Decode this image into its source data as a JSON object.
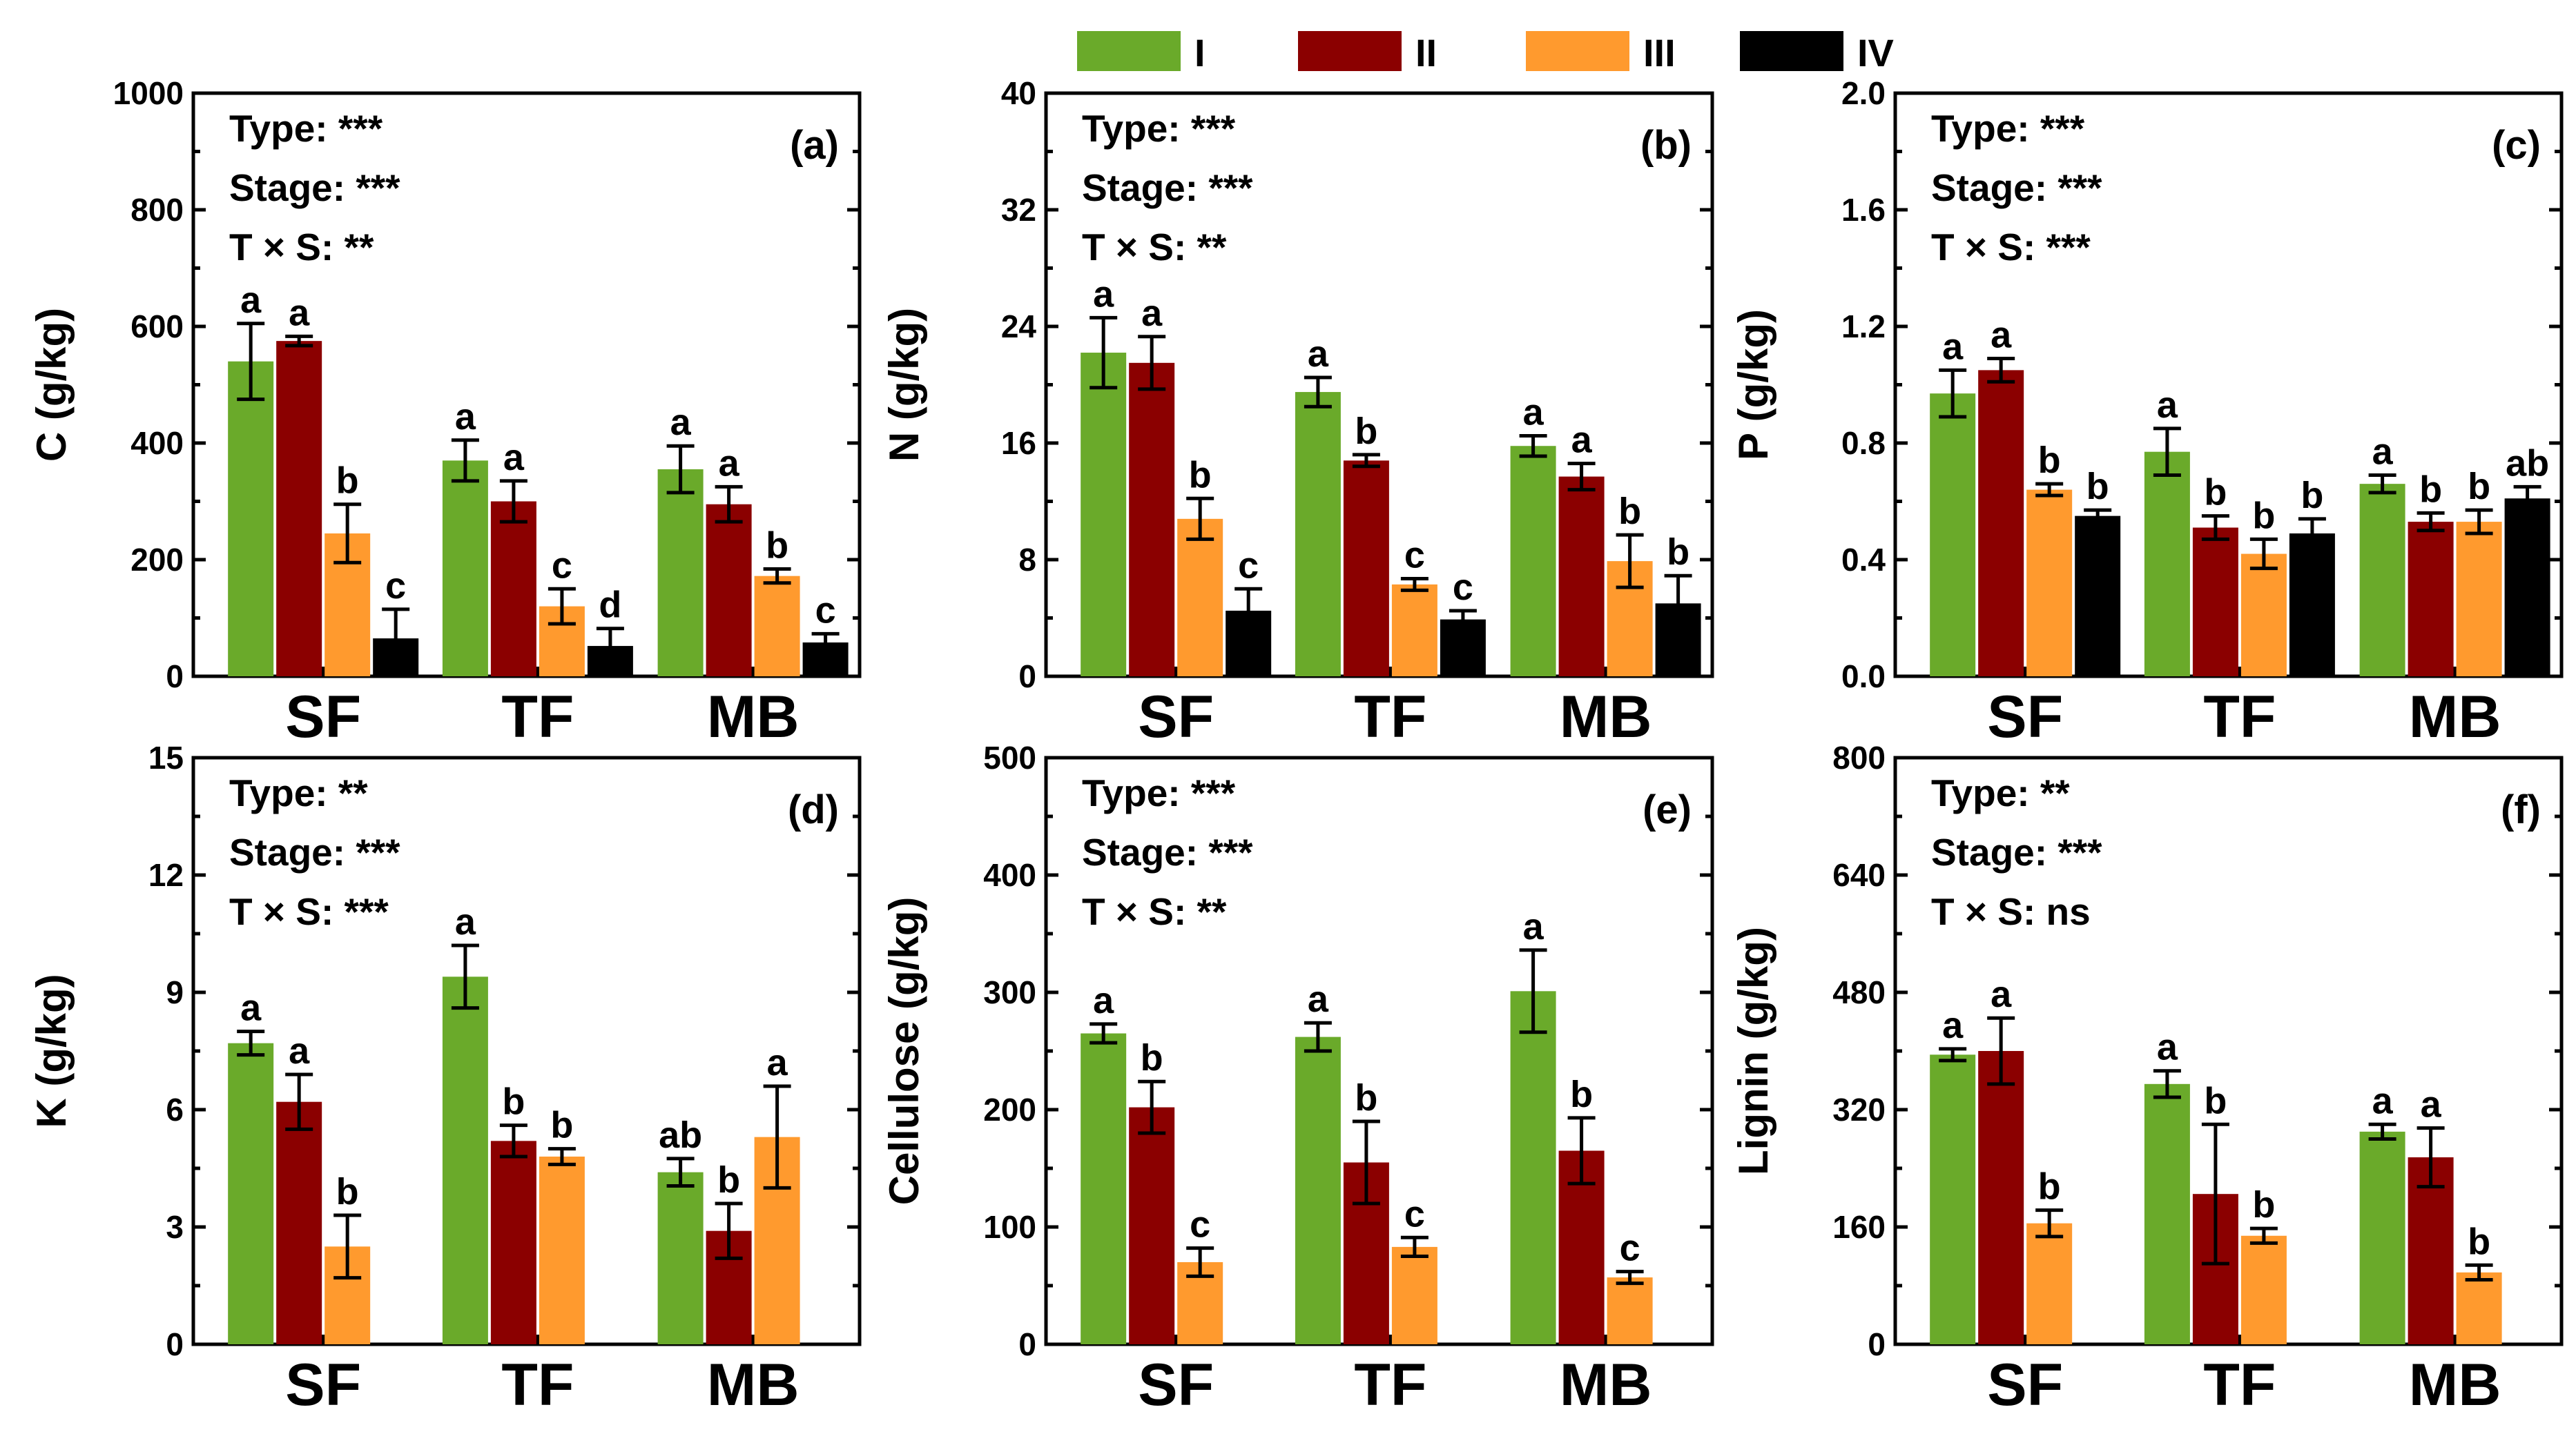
{
  "legend": {
    "entries": [
      {
        "name": "I",
        "color": "#6aaa2a"
      },
      {
        "name": "II",
        "color": "#8b0000"
      },
      {
        "name": "III",
        "color": "#ff9a2e"
      },
      {
        "name": "IV",
        "color": "#000000"
      }
    ]
  },
  "chart_data": [
    {
      "type": "bar",
      "panel": "(a)",
      "ylabel": "C (g/kg)",
      "ylim": [
        0,
        1000
      ],
      "yticks": [
        "0",
        "200",
        "400",
        "600",
        "800",
        "1000"
      ],
      "categories": [
        "SF",
        "TF",
        "MB"
      ],
      "stats": [
        "Type: ***",
        "Stage: ***",
        "T × S: **"
      ],
      "series": [
        {
          "name": "I",
          "values": [
            540,
            370,
            355
          ],
          "errors": [
            65,
            35,
            40
          ],
          "letters": [
            "a",
            "a",
            "a"
          ]
        },
        {
          "name": "II",
          "values": [
            575,
            300,
            295
          ],
          "errors": [
            8,
            35,
            30
          ],
          "letters": [
            "a",
            "a",
            "a"
          ]
        },
        {
          "name": "III",
          "values": [
            245,
            120,
            172
          ],
          "errors": [
            50,
            30,
            12
          ],
          "letters": [
            "b",
            "c",
            "b"
          ]
        },
        {
          "name": "IV",
          "values": [
            65,
            52,
            58
          ],
          "errors": [
            50,
            30,
            15
          ],
          "letters": [
            "c",
            "d",
            "c"
          ]
        }
      ]
    },
    {
      "type": "bar",
      "panel": "(b)",
      "ylabel": "N (g/kg)",
      "ylim": [
        0,
        40
      ],
      "yticks": [
        "0",
        "8",
        "16",
        "24",
        "32",
        "40"
      ],
      "categories": [
        "SF",
        "TF",
        "MB"
      ],
      "stats": [
        "Type: ***",
        "Stage: ***",
        "T × S: **"
      ],
      "series": [
        {
          "name": "I",
          "values": [
            22.2,
            19.5,
            15.8
          ],
          "errors": [
            2.4,
            1.0,
            0.7
          ],
          "letters": [
            "a",
            "a",
            "a"
          ]
        },
        {
          "name": "II",
          "values": [
            21.5,
            14.8,
            13.7
          ],
          "errors": [
            1.8,
            0.4,
            0.9
          ],
          "letters": [
            "a",
            "b",
            "a"
          ]
        },
        {
          "name": "III",
          "values": [
            10.8,
            6.3,
            7.9
          ],
          "errors": [
            1.4,
            0.4,
            1.8
          ],
          "letters": [
            "b",
            "c",
            "b"
          ]
        },
        {
          "name": "IV",
          "values": [
            4.5,
            3.9,
            5.0
          ],
          "errors": [
            1.5,
            0.6,
            1.9
          ],
          "letters": [
            "c",
            "c",
            "b"
          ]
        }
      ]
    },
    {
      "type": "bar",
      "panel": "(c)",
      "ylabel": "P (g/kg)",
      "ylim": [
        0,
        2.0
      ],
      "yticks": [
        "0.0",
        "0.4",
        "0.8",
        "1.2",
        "1.6",
        "2.0"
      ],
      "categories": [
        "SF",
        "TF",
        "MB"
      ],
      "stats": [
        "Type: ***",
        "Stage: ***",
        "T × S: ***"
      ],
      "series": [
        {
          "name": "I",
          "values": [
            0.97,
            0.77,
            0.66
          ],
          "errors": [
            0.08,
            0.08,
            0.03
          ],
          "letters": [
            "a",
            "a",
            "a"
          ]
        },
        {
          "name": "II",
          "values": [
            1.05,
            0.51,
            0.53
          ],
          "errors": [
            0.04,
            0.04,
            0.03
          ],
          "letters": [
            "a",
            "b",
            "b"
          ]
        },
        {
          "name": "III",
          "values": [
            0.64,
            0.42,
            0.53
          ],
          "errors": [
            0.02,
            0.05,
            0.04
          ],
          "letters": [
            "b",
            "b",
            "b"
          ]
        },
        {
          "name": "IV",
          "values": [
            0.55,
            0.49,
            0.61
          ],
          "errors": [
            0.02,
            0.05,
            0.04
          ],
          "letters": [
            "b",
            "b",
            "ab"
          ]
        }
      ]
    },
    {
      "type": "bar",
      "panel": "(d)",
      "ylabel": "K (g/kg)",
      "ylim": [
        0,
        15
      ],
      "yticks": [
        "0",
        "3",
        "6",
        "9",
        "12",
        "15"
      ],
      "categories": [
        "SF",
        "TF",
        "MB"
      ],
      "stats": [
        "Type: **",
        "Stage: ***",
        "T × S: ***"
      ],
      "series": [
        {
          "name": "I",
          "values": [
            7.7,
            9.4,
            4.4
          ],
          "errors": [
            0.3,
            0.8,
            0.35
          ],
          "letters": [
            "a",
            "a",
            "ab"
          ]
        },
        {
          "name": "II",
          "values": [
            6.2,
            5.2,
            2.9
          ],
          "errors": [
            0.7,
            0.4,
            0.7
          ],
          "letters": [
            "a",
            "b",
            "b"
          ]
        },
        {
          "name": "III",
          "values": [
            2.5,
            4.8,
            5.3
          ],
          "errors": [
            0.8,
            0.2,
            1.3
          ],
          "letters": [
            "b",
            "b",
            "a"
          ]
        }
      ]
    },
    {
      "type": "bar",
      "panel": "(e)",
      "ylabel": "Cellulose (g/kg)",
      "ylim": [
        0,
        500
      ],
      "yticks": [
        "0",
        "100",
        "200",
        "300",
        "400",
        "500"
      ],
      "categories": [
        "SF",
        "TF",
        "MB"
      ],
      "stats": [
        "Type: ***",
        "Stage: ***",
        "T × S: **"
      ],
      "series": [
        {
          "name": "I",
          "values": [
            265,
            262,
            301
          ],
          "errors": [
            8,
            12,
            35
          ],
          "letters": [
            "a",
            "a",
            "a"
          ]
        },
        {
          "name": "II",
          "values": [
            202,
            155,
            165
          ],
          "errors": [
            22,
            35,
            28
          ],
          "letters": [
            "b",
            "b",
            "b"
          ]
        },
        {
          "name": "III",
          "values": [
            70,
            83,
            57
          ],
          "errors": [
            12,
            8,
            5
          ],
          "letters": [
            "c",
            "c",
            "c"
          ]
        }
      ]
    },
    {
      "type": "bar",
      "panel": "(f)",
      "ylabel": "Lignin (g/kg)",
      "ylim": [
        0,
        800
      ],
      "yticks": [
        "0",
        "160",
        "320",
        "480",
        "640",
        "800"
      ],
      "categories": [
        "SF",
        "TF",
        "MB"
      ],
      "stats": [
        "Type: **",
        "Stage: ***",
        "T × S: ns"
      ],
      "series": [
        {
          "name": "I",
          "values": [
            395,
            355,
            290
          ],
          "errors": [
            8,
            18,
            10
          ],
          "letters": [
            "a",
            "a",
            "a"
          ]
        },
        {
          "name": "II",
          "values": [
            400,
            205,
            255
          ],
          "errors": [
            45,
            95,
            40
          ],
          "letters": [
            "a",
            "b",
            "a"
          ]
        },
        {
          "name": "III",
          "values": [
            165,
            148,
            98
          ],
          "errors": [
            18,
            10,
            10
          ],
          "letters": [
            "b",
            "b",
            "b"
          ]
        }
      ]
    }
  ]
}
